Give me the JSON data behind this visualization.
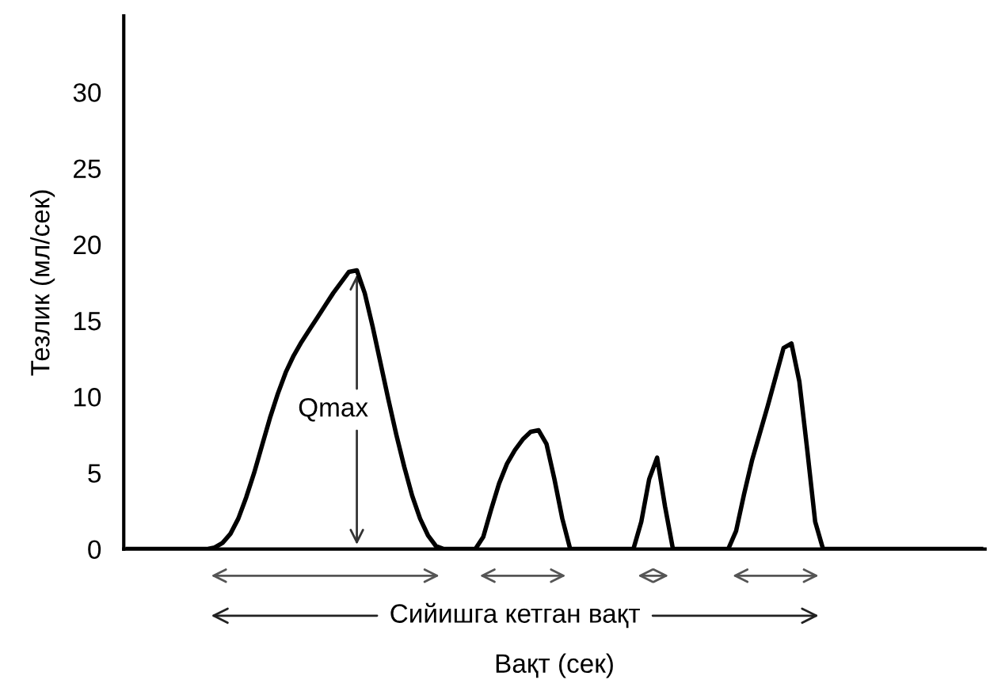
{
  "chart_data": {
    "type": "line",
    "xlabel": "Вақт (сек)",
    "ylabel": "Тезлик (мл/сек)",
    "categories": [
      null,
      null,
      null,
      null,
      null,
      null,
      null,
      null,
      null,
      null,
      null,
      null,
      null,
      null,
      null,
      null,
      null,
      null,
      null,
      null,
      null,
      null,
      null,
      null,
      null,
      null,
      null,
      null,
      null,
      null,
      null,
      null,
      null,
      null,
      null,
      null,
      null,
      null,
      null,
      null,
      null,
      null,
      null,
      null,
      null,
      null,
      null,
      null,
      null,
      null,
      null,
      null,
      null,
      null,
      null,
      null,
      null,
      null,
      null,
      null,
      null,
      null,
      null,
      null,
      null,
      null,
      null,
      null,
      null,
      null,
      null,
      null,
      null,
      null,
      null,
      null,
      null,
      null,
      null,
      null,
      null,
      null,
      null,
      null,
      null,
      null,
      null,
      null,
      null,
      null,
      null,
      null,
      null,
      null,
      null,
      null,
      null,
      null,
      null,
      null,
      null,
      null,
      null,
      null,
      null,
      null,
      null,
      null,
      null
    ],
    "series": [
      {
        "color": "#000000",
        "values": [
          0,
          0,
          0,
          0,
          0,
          0,
          0,
          0,
          0,
          0,
          0,
          0.1,
          0.4,
          1.0,
          2.0,
          3.4,
          5.0,
          6.8,
          8.6,
          10.2,
          11.6,
          12.7,
          13.6,
          14.4,
          15.2,
          16.0,
          16.8,
          17.5,
          18.2,
          18.3,
          16.8,
          14.6,
          12.2,
          9.8,
          7.5,
          5.4,
          3.5,
          2.0,
          0.9,
          0.2,
          0,
          0,
          0,
          0,
          0,
          0.8,
          2.6,
          4.3,
          5.6,
          6.5,
          7.2,
          7.7,
          7.8,
          6.9,
          4.6,
          2.0,
          0,
          0,
          0,
          0,
          0,
          0,
          0,
          0,
          0,
          1.8,
          4.6,
          6.0,
          2.8,
          0,
          0,
          0,
          0,
          0,
          0,
          0,
          0,
          1.2,
          3.6,
          5.8,
          7.6,
          9.4,
          11.3,
          13.2,
          13.5,
          11.0,
          6.5,
          1.8,
          0,
          0,
          0,
          0,
          0,
          0,
          0,
          0,
          0,
          0,
          0,
          0,
          0,
          0,
          0,
          0,
          0,
          0,
          0,
          0,
          0
        ]
      }
    ],
    "ylim": [
      0,
      35
    ],
    "yticks": [
      0,
      5,
      10,
      15,
      20,
      25,
      30
    ],
    "tick_labels": "y",
    "grid": false,
    "marker": "none",
    "line_style": "solid",
    "annotations": [
      "Qmax",
      "Сийишга кетган вақт"
    ]
  }
}
